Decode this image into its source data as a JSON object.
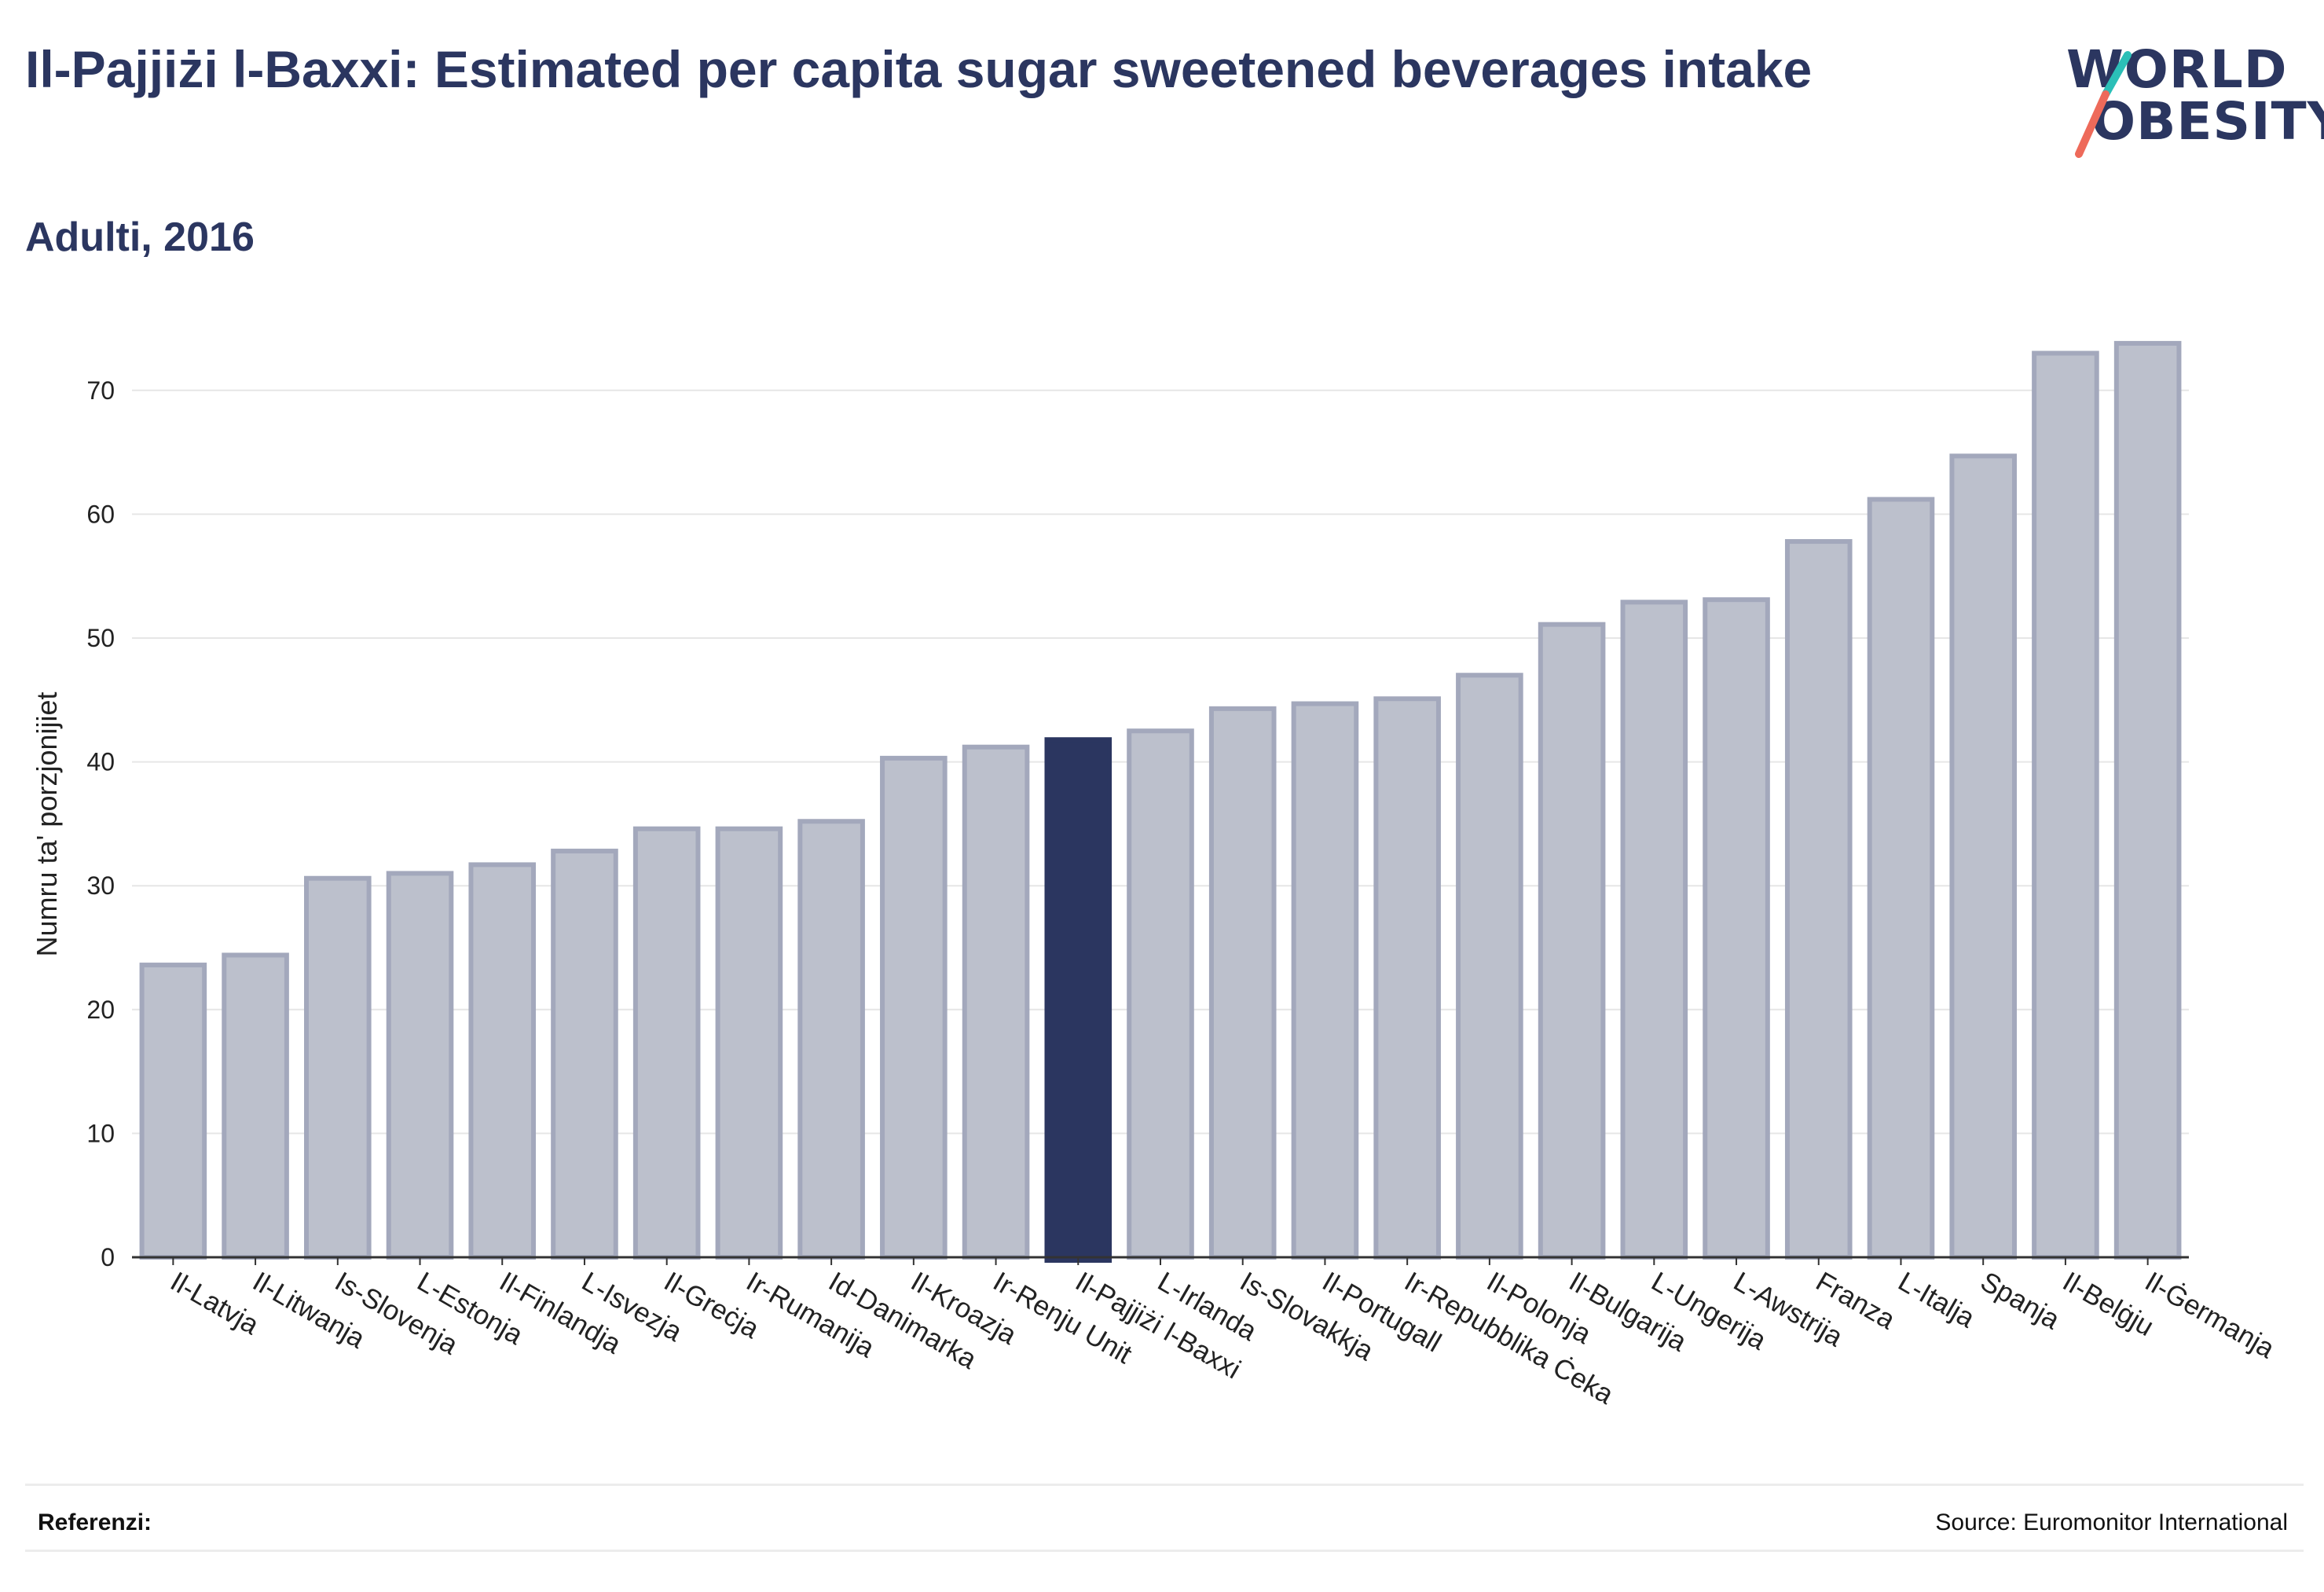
{
  "header": {
    "title": "Il-Pajjiżi l-Baxxi: Estimated per capita sugar sweetened beverages intake",
    "subtitle": "Adulti, 2016"
  },
  "logo": {
    "line1": "WORLD",
    "line2": "OBESITY",
    "slash_colors": [
      "#2bbfb7",
      "#ee6a5a"
    ]
  },
  "footer": {
    "left_label": "Referenzi:",
    "source": "Source: Euromonitor International"
  },
  "colors": {
    "bar_fill": "#bcc0cc",
    "bar_stroke": "#a3a8bc",
    "highlight": "#2b3660",
    "grid": "#e6e6e6",
    "text": "#222222"
  },
  "chart_data": {
    "type": "bar",
    "ylabel": "Numru ta' porzjonijiet",
    "ylim": [
      0,
      75
    ],
    "yticks": [
      0,
      10,
      20,
      30,
      40,
      50,
      60,
      70
    ],
    "grid": true,
    "highlight_category": "Il-Pajjiżi l-Baxxi",
    "categories": [
      "Il-Latvja",
      "Il-Litwanja",
      "Is-Slovenja",
      "L-Estonja",
      "Il-Finlandja",
      "L-Isvezja",
      "Il-Greċja",
      "Ir-Rumanija",
      "Id-Danimarka",
      "Il-Kroazja",
      "Ir-Renju Unit",
      "Il-Pajjiżi l-Baxxi",
      "L-Irlanda",
      "Is-Slovakkja",
      "Il-Portugall",
      "Ir-Repubblika Ċeka",
      "Il-Polonja",
      "Il-Bulgarija",
      "L-Ungerija",
      "L-Awstrija",
      "Franza",
      "L-Italja",
      "Spanja",
      "Il-Belġju",
      "Il-Ġermanja"
    ],
    "values": [
      23.6,
      24.4,
      30.6,
      31.0,
      31.7,
      32.8,
      34.6,
      34.6,
      35.2,
      40.3,
      41.2,
      41.8,
      42.5,
      44.3,
      44.7,
      45.1,
      47.0,
      51.1,
      52.9,
      53.1,
      57.8,
      61.2,
      64.7,
      73.0,
      73.8
    ]
  }
}
